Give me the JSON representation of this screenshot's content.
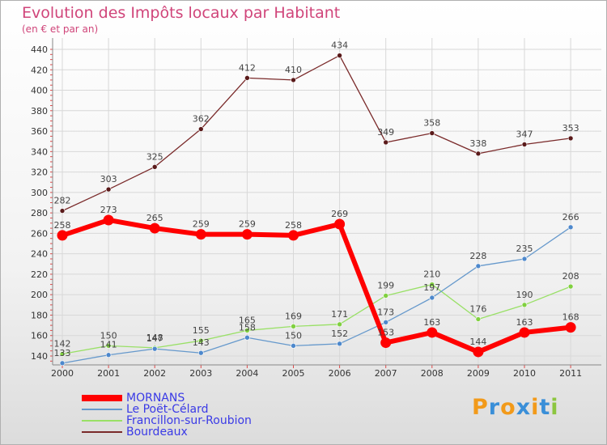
{
  "header": {
    "title": "Evolution des Impôts locaux par Habitant",
    "subtitle": "(en € et par an)"
  },
  "logo": {
    "text": "Proxiti"
  },
  "chart_data": {
    "type": "line",
    "title": "Evolution des Impôts locaux par Habitant",
    "subtitle": "(en € et par an)",
    "xlabel": "",
    "ylabel": "",
    "categories": [
      "2000",
      "2001",
      "2002",
      "2003",
      "2004",
      "2005",
      "2006",
      "2007",
      "2008",
      "2009",
      "2010",
      "2011"
    ],
    "ylim": [
      130,
      440
    ],
    "yticks": [
      140,
      160,
      180,
      200,
      220,
      240,
      260,
      280,
      300,
      320,
      340,
      360,
      380,
      400,
      420,
      440
    ],
    "grid": true,
    "legend_position": "bottom-left",
    "series": [
      {
        "name": "MORNANS",
        "color": "#ff0000",
        "values": [
          258,
          273,
          265,
          259,
          259,
          258,
          269,
          153,
          163,
          144,
          163,
          168
        ]
      },
      {
        "name": "Le Poët-Célard",
        "color": "#6699cc",
        "values": [
          133,
          141,
          147,
          143,
          158,
          150,
          152,
          173,
          197,
          228,
          235,
          266
        ]
      },
      {
        "name": "Francillon-sur-Roubion",
        "color": "#99e066",
        "values": [
          142,
          150,
          148,
          155,
          165,
          169,
          171,
          199,
          210,
          176,
          190,
          208
        ]
      },
      {
        "name": "Bourdeaux",
        "color": "#7a2a2a",
        "values": [
          282,
          303,
          325,
          362,
          412,
          410,
          434,
          349,
          358,
          338,
          347,
          353
        ]
      }
    ]
  }
}
